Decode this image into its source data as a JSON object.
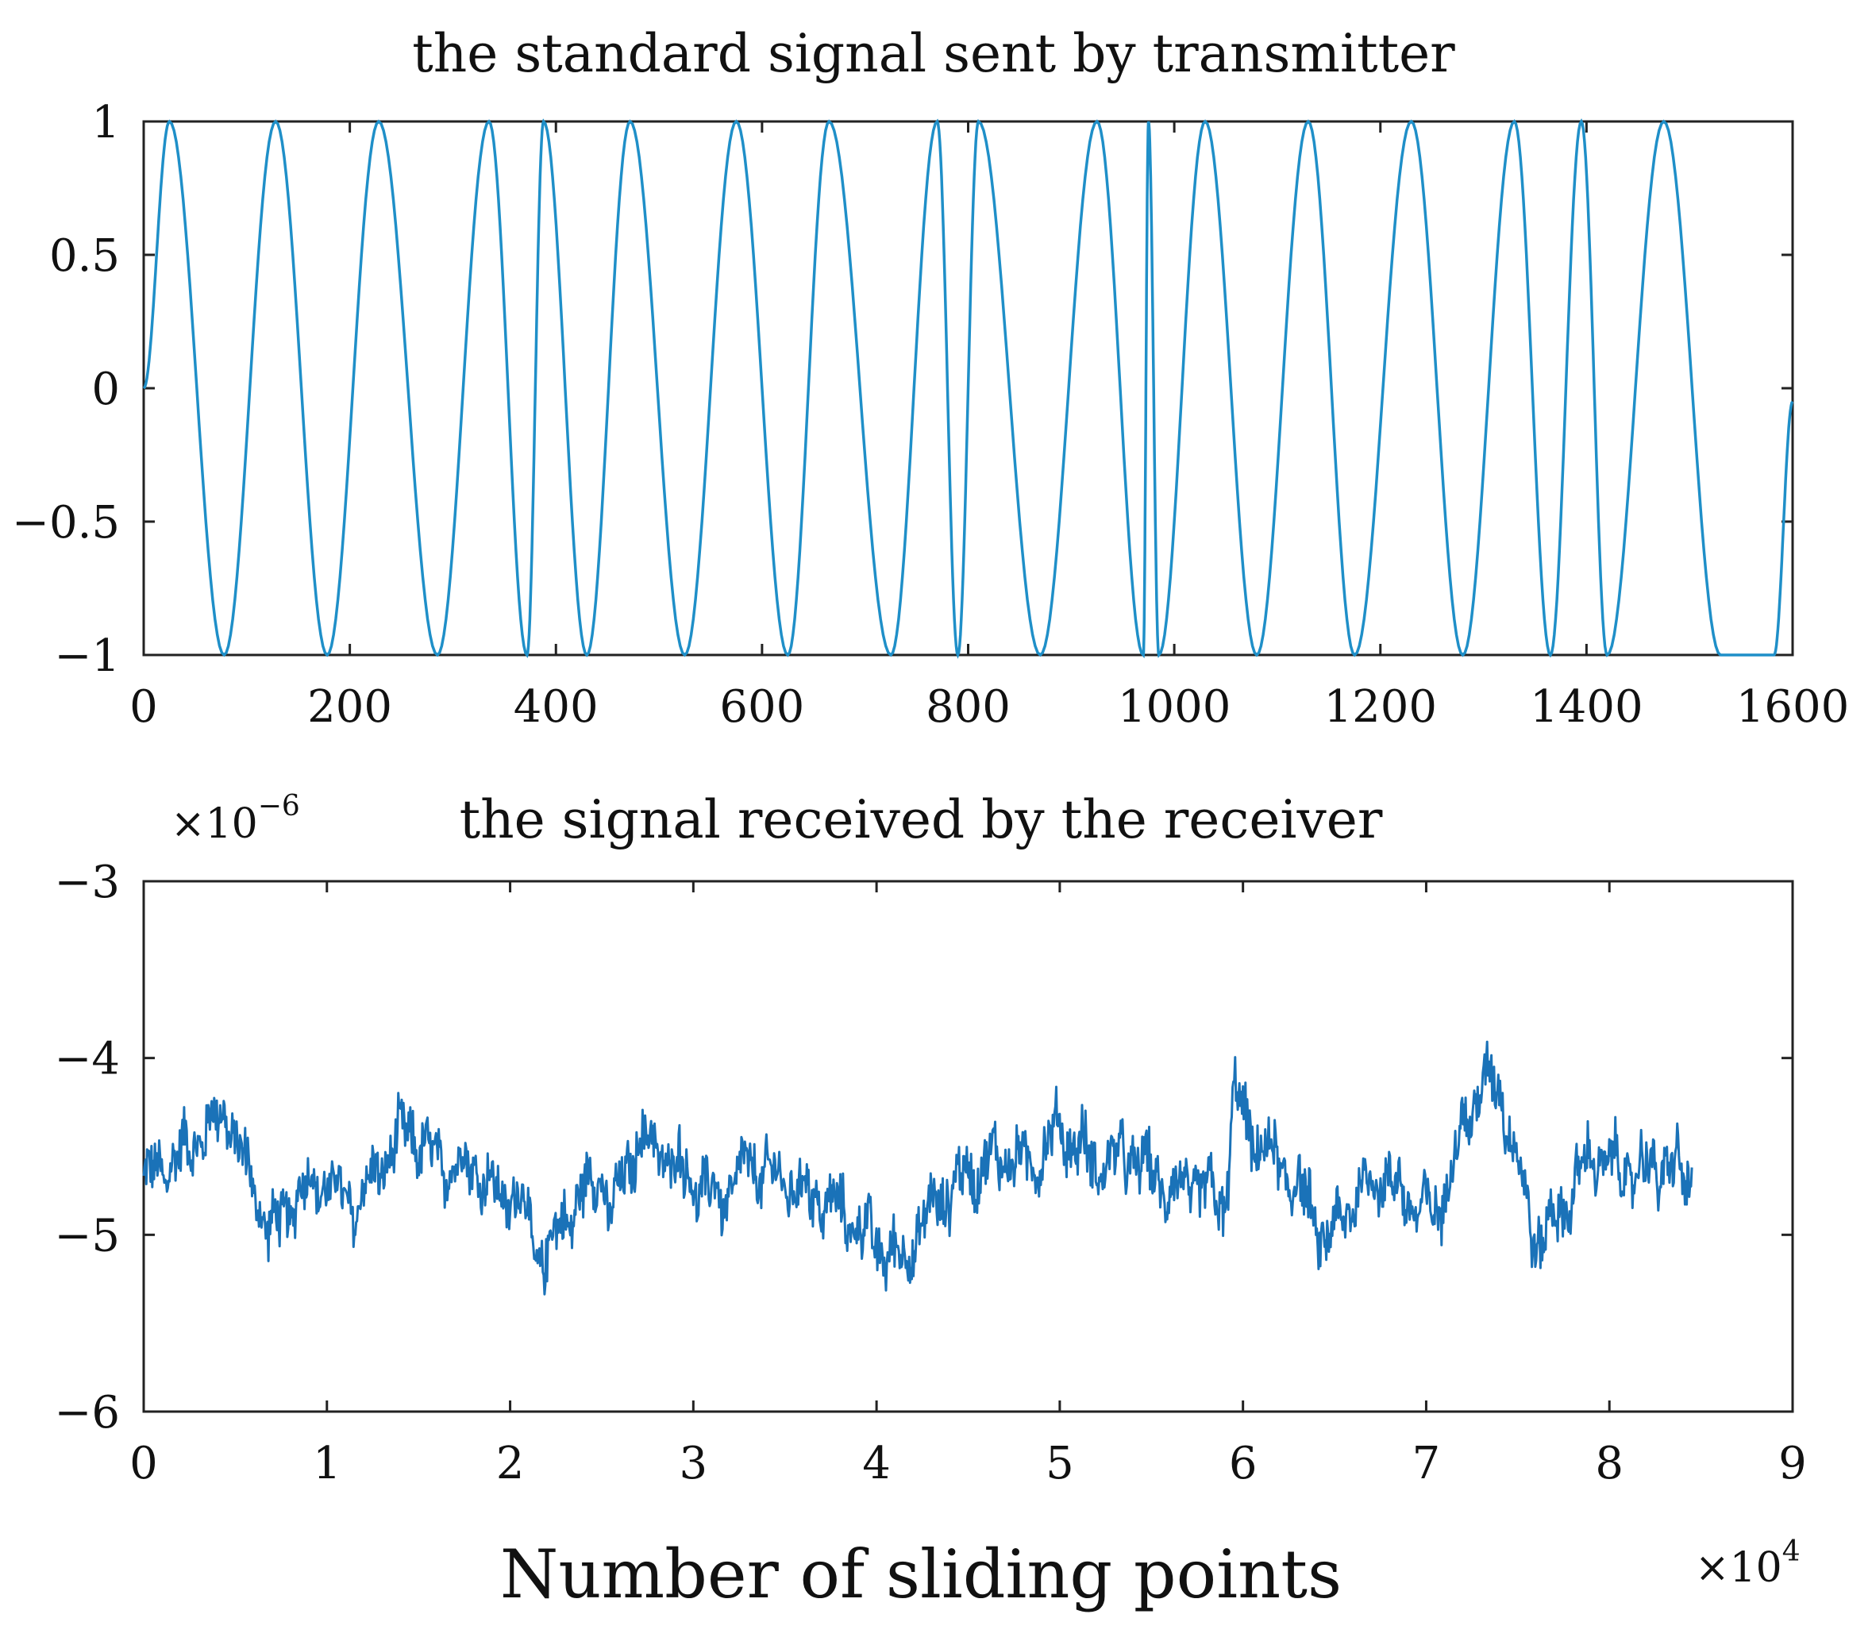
{
  "chart_data": [
    {
      "type": "line",
      "title": "the standard signal sent by transmitter",
      "xlabel": "",
      "ylabel": "",
      "xlim": [
        0,
        1600
      ],
      "ylim": [
        -1,
        1
      ],
      "xticks": [
        "0",
        "200",
        "400",
        "600",
        "800",
        "1000",
        "1200",
        "1400",
        "1600"
      ],
      "yticks": [
        "1",
        "0.5",
        "0",
        "−0.5",
        "−1"
      ],
      "series": [
        {
          "color": "#1f8fc8",
          "x": [
            0,
            25,
            78,
            128,
            178,
            228,
            285,
            335,
            372,
            388,
            430,
            472,
            525,
            575,
            625,
            665,
            725,
            770,
            790,
            810,
            870,
            925,
            970,
            975,
            985,
            1030,
            1080,
            1130,
            1175,
            1230,
            1280,
            1330,
            1365,
            1395,
            1420,
            1475,
            1530,
            1582,
            1600
          ],
          "y": [
            0,
            1,
            -1,
            1,
            -1,
            1,
            -1,
            1,
            -1,
            1,
            -1,
            1,
            -1,
            1,
            -1,
            1,
            -1,
            1,
            -1,
            1,
            -1,
            1,
            -1,
            1,
            -1,
            1,
            -1,
            1,
            -1,
            1,
            -1,
            1,
            -1,
            1,
            -1,
            1,
            -1,
            -1,
            -0.05
          ]
        }
      ]
    },
    {
      "type": "line",
      "title": "the signal received by the receiver",
      "xlabel": "Number of sliding points",
      "ylabel": "",
      "xlim": [
        0,
        9
      ],
      "ylim": [
        -6,
        -3
      ],
      "x_scale": "×10",
      "x_scale_exp": "4",
      "y_scale": "×10",
      "y_scale_exp": "−6",
      "xticks": [
        "0",
        "1",
        "2",
        "3",
        "4",
        "5",
        "6",
        "7",
        "8",
        "9"
      ],
      "yticks": [
        "−3",
        "−4",
        "−5",
        "−6"
      ],
      "series": [
        {
          "color": "#1a72b8",
          "band_half_width": 0.13,
          "x": [
            0,
            0.2,
            0.35,
            0.45,
            0.55,
            0.7,
            0.85,
            1.0,
            1.15,
            1.3,
            1.45,
            1.6,
            1.8,
            1.95,
            2.05,
            2.15,
            2.25,
            2.4,
            2.5,
            2.55,
            2.7,
            2.85,
            3.0,
            3.15,
            3.3,
            3.5,
            3.7,
            3.85,
            4.0,
            4.15,
            4.3,
            4.5,
            4.7,
            4.85,
            5.0,
            5.2,
            5.4,
            5.6,
            5.75,
            5.9,
            5.95,
            6.05,
            6.2,
            6.35,
            6.45,
            6.6,
            6.75,
            6.9,
            7.05,
            7.2,
            7.3,
            7.4,
            7.5,
            7.6,
            7.75,
            7.9,
            8.1,
            8.3,
            8.45
          ],
          "y": [
            -4.7,
            -4.55,
            -4.4,
            -4.3,
            -4.6,
            -5.0,
            -4.75,
            -4.7,
            -4.85,
            -4.6,
            -4.4,
            -4.6,
            -4.6,
            -4.8,
            -4.75,
            -5.15,
            -5.0,
            -4.75,
            -4.65,
            -4.9,
            -4.45,
            -4.55,
            -4.7,
            -4.8,
            -4.6,
            -4.7,
            -4.8,
            -4.9,
            -5.05,
            -5.15,
            -4.85,
            -4.65,
            -4.55,
            -4.6,
            -4.4,
            -4.6,
            -4.55,
            -4.75,
            -4.7,
            -4.85,
            -4.2,
            -4.45,
            -4.6,
            -4.8,
            -5.05,
            -4.8,
            -4.65,
            -4.8,
            -4.9,
            -4.4,
            -4.15,
            -4.15,
            -4.6,
            -5.05,
            -4.85,
            -4.55,
            -4.65,
            -4.6,
            -4.7
          ]
        }
      ]
    }
  ]
}
